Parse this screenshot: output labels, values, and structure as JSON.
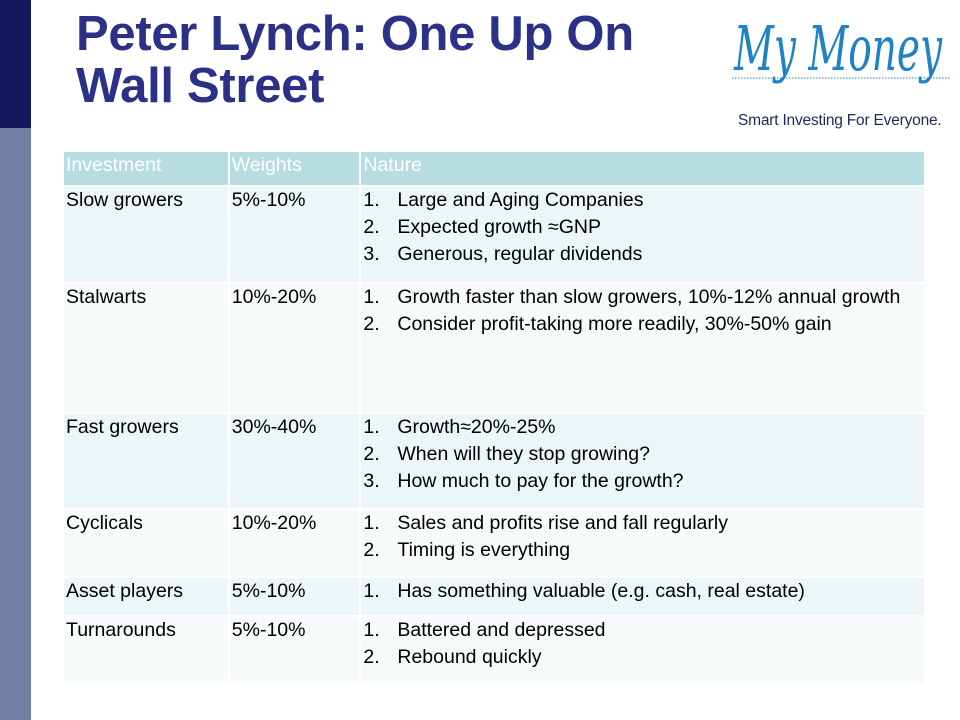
{
  "title": {
    "line1": "Peter Lynch: One Up On",
    "line2": "Wall Street"
  },
  "logo": {
    "wordmark": "My Money",
    "tagline": "Smart Investing For Everyone."
  },
  "colors": {
    "title": "#2b3187",
    "sidebar_dark": "#151a5c",
    "sidebar_light": "#727ea4",
    "header_row": "#b7dde1",
    "logo_blue": "#1e82c4"
  },
  "table": {
    "headers": [
      "Investment",
      "Weights",
      "Nature"
    ],
    "rows": [
      {
        "investment": "Slow growers",
        "weights": "5%-10%",
        "nature": [
          "Large and Aging Companies",
          "Expected growth ≈GNP",
          "Generous, regular dividends"
        ]
      },
      {
        "investment": "Stalwarts",
        "weights": "10%-20%",
        "nature": [
          "Growth faster than slow growers, 10%-12% annual growth",
          "Consider profit-taking more readily, 30%-50% gain"
        ]
      },
      {
        "investment": "Fast growers",
        "weights": "30%-40%",
        "nature": [
          "Growth≈20%-25%",
          "When will they stop growing?",
          "How much to pay for the growth?"
        ]
      },
      {
        "investment": "Cyclicals",
        "weights": "10%-20%",
        "nature": [
          "Sales and profits rise and fall regularly",
          "Timing is everything"
        ]
      },
      {
        "investment": "Asset players",
        "weights": "5%-10%",
        "nature": [
          "Has something valuable (e.g. cash, real estate)"
        ]
      },
      {
        "investment": "Turnarounds",
        "weights": "5%-10%",
        "nature": [
          "Battered and depressed",
          "Rebound quickly"
        ]
      }
    ]
  }
}
